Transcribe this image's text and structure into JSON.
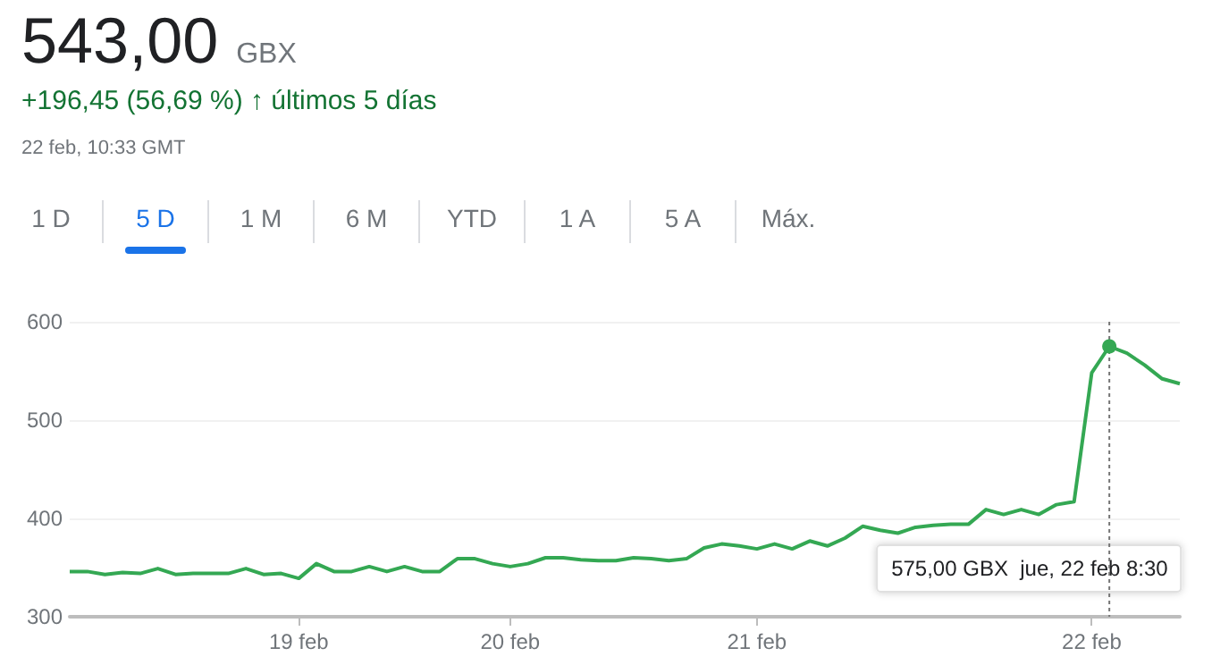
{
  "chart_data": {
    "type": "line",
    "title": "543,00 GBX",
    "subtitle": "+196,45 (56,69 %) ↑ últimos 5 días",
    "annotations": [
      "22 feb, 10:33 GMT",
      "1 D",
      "5 D",
      "1 M",
      "6 M",
      "YTD",
      "1 A",
      "5 A",
      "Máx.",
      "575,00 GBX  jue, 22 feb 8:30"
    ],
    "categories": [
      null,
      null,
      null,
      null,
      null,
      null,
      null,
      null,
      null,
      null,
      null,
      null,
      null,
      "19 feb",
      null,
      null,
      null,
      null,
      null,
      null,
      null,
      null,
      null,
      null,
      null,
      "20 feb",
      null,
      null,
      null,
      null,
      null,
      null,
      null,
      null,
      null,
      null,
      null,
      null,
      null,
      "21 feb",
      null,
      null,
      null,
      null,
      null,
      null,
      null,
      null,
      null,
      null,
      null,
      null,
      null,
      null,
      null,
      null,
      null,
      null,
      "22 feb",
      null,
      null,
      null,
      null,
      null
    ],
    "series": [
      {
        "color": "#34a853",
        "values": [
          346,
          346,
          343,
          345,
          344,
          349,
          343,
          344,
          344,
          344,
          349,
          343,
          344,
          339,
          354,
          346,
          346,
          351,
          346,
          351,
          346,
          346,
          359,
          359,
          354,
          351,
          354,
          360,
          360,
          358,
          357,
          357,
          360,
          359,
          357,
          359,
          370,
          374,
          372,
          369,
          374,
          369,
          377,
          372,
          380,
          392,
          388,
          385,
          391,
          393,
          394,
          394,
          409,
          404,
          409,
          404,
          414,
          417,
          548,
          575,
          568,
          556,
          542,
          537
        ]
      }
    ],
    "ylim": [
      300,
      600
    ],
    "yticks": [
      300,
      400,
      500,
      600
    ],
    "grid": "y"
  }
}
